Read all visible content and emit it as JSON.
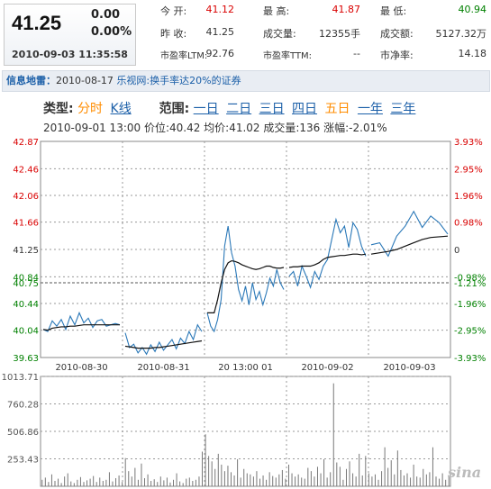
{
  "quote": {
    "price": "41.25",
    "change": "0.00",
    "change_pct": "0.00%",
    "datetime": "2010-09-03 11:35:58"
  },
  "stats": {
    "open_label": "今 开:",
    "open": "41.12",
    "high_label": "最 高:",
    "high": "41.87",
    "low_label": "最 低:",
    "low": "40.94",
    "prev_close_label": "昨 收:",
    "prev_close": "41.25",
    "volume_label": "成交量:",
    "volume": "12355手",
    "amount_label": "成交额:",
    "amount": "5127.32万",
    "pe_ltm_label": "市盈率LTM:",
    "pe_ltm": "92.76",
    "pe_ttm_label": "市盈率TTM:",
    "pe_ttm": "--",
    "pb_label": "市净率:",
    "pb": "14.18"
  },
  "news": {
    "title": "信息地雷：",
    "date": "2010-08-17",
    "text": "乐视网:换手率达20%的证券"
  },
  "toolbar": {
    "type_label": "类型:",
    "type_options": [
      "分时",
      "K线"
    ],
    "range_label": "范围:",
    "range_options": [
      "一日",
      "二日",
      "三日",
      "四日",
      "五日",
      "一年",
      "三年"
    ],
    "active_type": "分时",
    "active_range": "五日"
  },
  "info_line": "2010-09-01  13:00  价位:40.42  均价:41.02  成交量:136  涨幅:-2.01%",
  "colors": {
    "price_line": "#2a78b8",
    "avg_line": "#111111",
    "up": "#d90000",
    "down": "#008000",
    "grid": "#9a9a9a",
    "volume_bar": "#777777"
  },
  "chart_data": [
    {
      "type": "line",
      "title": "",
      "x_labels": [
        "2010-08-30",
        "2010-08-31",
        "2010-09-01",
        "2010-09-02",
        "2010-09-03"
      ],
      "cursor_label": "20 13:00 01",
      "y_left_ticks": [
        "42.87",
        "42.46",
        "42.06",
        "41.66",
        "41.25",
        "40.84",
        "40.75",
        "40.44",
        "40.04",
        "39.63"
      ],
      "y_right_ticks": [
        "3.93%",
        "2.95%",
        "1.96%",
        "0.98%",
        "0",
        "-0.98%",
        "-1.21%",
        "-1.96%",
        "-2.95%",
        "-3.93%"
      ],
      "ylim": [
        39.63,
        42.87
      ],
      "baseline": 41.25,
      "cursor_value": 40.75,
      "series": [
        {
          "values": [
            40.05,
            40.02,
            40.18,
            40.1,
            40.2,
            40.05,
            40.25,
            40.12,
            40.3,
            40.15,
            40.22,
            40.08,
            40.18,
            40.2,
            40.1,
            40.12,
            40.14,
            40.12,
            40.0,
            39.78,
            39.83,
            39.7,
            39.78,
            39.68,
            39.82,
            39.72,
            39.86,
            39.74,
            39.82,
            39.9,
            39.76,
            39.92,
            39.84,
            40.02,
            39.9,
            40.12,
            40.02,
            40.3,
            40.1,
            40.02,
            40.2,
            40.5,
            41.3,
            41.6,
            41.2,
            41.0,
            40.65,
            40.48,
            40.7,
            40.42,
            40.75,
            40.5,
            40.62,
            40.42,
            40.6,
            40.82,
            40.7,
            40.95,
            40.75,
            40.65,
            40.85,
            40.92,
            40.7,
            41.0,
            40.85,
            40.68,
            40.92,
            40.8,
            41.0,
            41.1,
            41.4,
            41.7,
            41.5,
            41.6,
            41.28,
            41.65,
            41.55,
            41.3,
            41.15,
            41.32,
            41.35,
            41.15,
            41.45,
            41.6,
            41.82,
            41.58,
            41.75,
            41.65,
            41.48,
            41.25
          ]
        },
        {
          "values": [
            40.05,
            40.04,
            40.07,
            40.08,
            40.09,
            40.09,
            40.1,
            40.1,
            40.11,
            40.12,
            40.12,
            40.12,
            40.12,
            40.12,
            40.12,
            40.12,
            40.12,
            40.12,
            39.8,
            39.79,
            39.78,
            39.77,
            39.77,
            39.77,
            39.77,
            39.78,
            39.78,
            39.79,
            39.8,
            39.81,
            39.82,
            39.83,
            39.84,
            39.85,
            39.86,
            39.87,
            39.88,
            40.3,
            40.3,
            40.3,
            40.5,
            40.75,
            40.95,
            41.05,
            41.08,
            41.07,
            41.05,
            41.02,
            41.0,
            40.98,
            40.96,
            40.95,
            40.96,
            40.98,
            41.0,
            41.0,
            40.98,
            40.97,
            40.97,
            40.98,
            40.98,
            40.99,
            40.99,
            41.0,
            41.0,
            41.0,
            41.02,
            41.05,
            41.1,
            41.13,
            41.14,
            41.15,
            41.16,
            41.16,
            41.17,
            41.18,
            41.18,
            41.17,
            41.18,
            41.18,
            41.2,
            41.22,
            41.25,
            41.3,
            41.35,
            41.4,
            41.43,
            41.44,
            41.45,
            41.45
          ]
        }
      ]
    },
    {
      "type": "bar",
      "title": "",
      "y_ticks": [
        "1013.71",
        "760.28",
        "506.86",
        "253.43"
      ],
      "ylim": [
        0,
        1013.71
      ],
      "values": [
        60,
        80,
        40,
        110,
        50,
        70,
        30,
        90,
        120,
        45,
        30,
        60,
        85,
        40,
        55,
        70,
        95,
        40,
        80,
        50,
        60,
        130,
        45,
        75,
        100,
        40,
        260,
        140,
        90,
        170,
        60,
        210,
        75,
        110,
        50,
        65,
        40,
        90,
        55,
        80,
        35,
        60,
        120,
        45,
        30,
        70,
        80,
        50,
        60,
        90,
        320,
        480,
        280,
        230,
        160,
        300,
        200,
        140,
        190,
        130,
        100,
        250,
        80,
        160,
        120,
        110,
        90,
        140,
        70,
        100,
        60,
        130,
        95,
        80,
        110,
        150,
        70,
        200,
        120,
        90,
        110,
        80,
        70,
        170,
        140,
        90,
        180,
        120,
        250,
        80,
        130,
        950,
        220,
        180,
        60,
        160,
        230,
        120,
        90,
        300,
        100,
        280,
        120,
        90,
        110,
        60,
        140,
        360,
        170,
        240,
        110,
        330,
        150,
        100,
        120,
        80,
        200,
        90,
        80,
        160,
        110,
        130,
        360,
        90,
        70,
        120,
        60,
        100
      ]
    }
  ]
}
